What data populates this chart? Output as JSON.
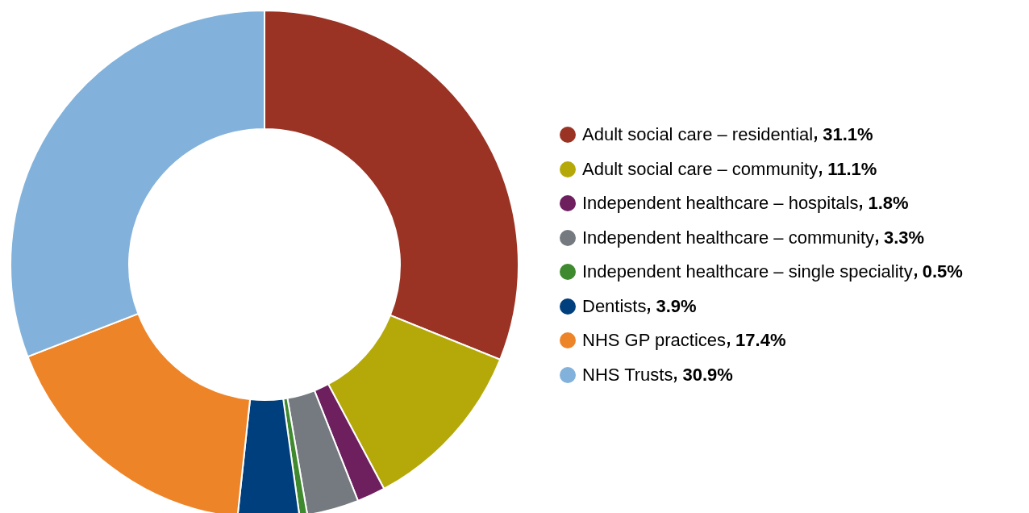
{
  "chart_data": {
    "type": "donut",
    "categories": [
      "Adult social care – residential",
      "Adult social care – community",
      "Independent healthcare – hospitals",
      "Independent healthcare – community",
      "Independent healthcare – single speciality",
      "Dentists",
      "NHS GP practices",
      "NHS Trusts"
    ],
    "values": [
      31.1,
      11.1,
      1.8,
      3.3,
      0.5,
      3.9,
      17.4,
      30.9
    ],
    "value_labels": [
      "31.1%",
      "11.1%",
      "1.8%",
      "3.3%",
      "0.5%",
      "3.9%",
      "17.4%",
      "30.9%"
    ],
    "colors": [
      "#9a3324",
      "#b5a90a",
      "#6e1f5e",
      "#747a7f",
      "#3f8a2e",
      "#003f7d",
      "#ee8428",
      "#82b2db"
    ],
    "legend": "right"
  }
}
